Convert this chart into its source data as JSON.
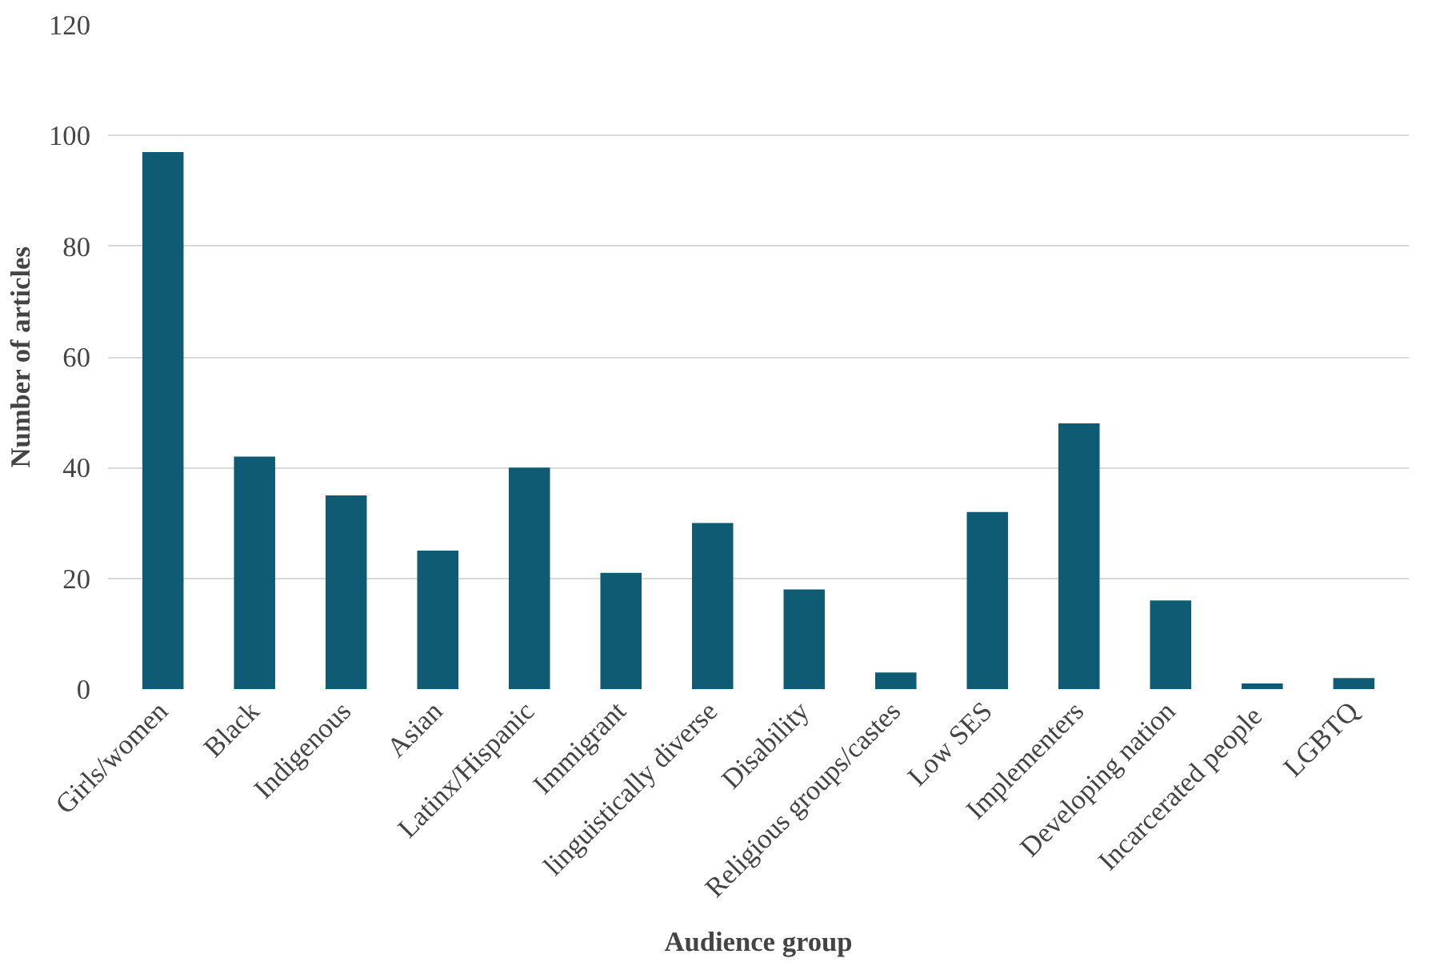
{
  "chart_data": {
    "type": "bar",
    "xlabel": "Audience group",
    "ylabel": "Number of articles",
    "categories": [
      "Girls/women",
      "Black",
      "Indigenous",
      "Asian",
      "Latinx/Hispanic",
      "Immigrant",
      "linguistically diverse",
      "Disability",
      "Religious groups/castes",
      "Low SES",
      "Implementers",
      "Developing nation",
      "Incarcerated  people",
      "LGBTQ"
    ],
    "values": [
      97,
      42,
      35,
      25,
      40,
      21,
      30,
      18,
      3,
      32,
      48,
      16,
      1,
      2
    ],
    "color": "#0f5b74",
    "ylim": [
      0,
      120
    ],
    "yticks": [
      0,
      20,
      40,
      60,
      80,
      100,
      120
    ],
    "grid": "y"
  }
}
